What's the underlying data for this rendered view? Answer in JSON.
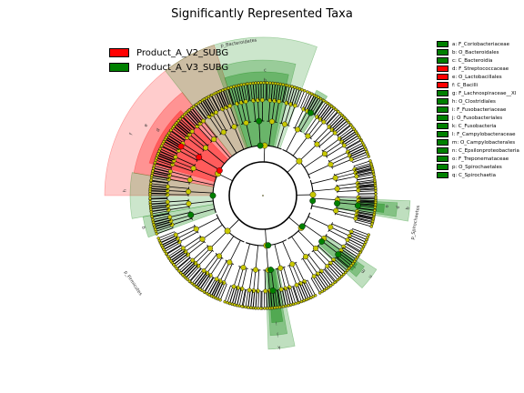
{
  "chart_data": {
    "type": "cladogram",
    "title": "Significantly Represented Taxa",
    "colors": {
      "Product_A_V2_SUBG": "#ff0000",
      "Product_A_V3_SUBG": "#008000",
      "node_default": "#c8c800"
    },
    "groups": [
      {
        "name": "Product_A_V2_SUBG",
        "color": "#ff0000"
      },
      {
        "name": "Product_A_V3_SUBG",
        "color": "#008000"
      }
    ],
    "key": [
      {
        "code": "a",
        "taxon": "a: F_Coriobacteriaceae",
        "group": "Product_A_V3_SUBG"
      },
      {
        "code": "b",
        "taxon": "b: O_Bacteroidales",
        "group": "Product_A_V3_SUBG"
      },
      {
        "code": "c",
        "taxon": "c: C_Bacteroidia",
        "group": "Product_A_V3_SUBG"
      },
      {
        "code": "d",
        "taxon": "d: F_Streptococcaceae",
        "group": "Product_A_V2_SUBG"
      },
      {
        "code": "e",
        "taxon": "e: O_Lactobacillales",
        "group": "Product_A_V2_SUBG"
      },
      {
        "code": "f",
        "taxon": "f: C_Bacilli",
        "group": "Product_A_V2_SUBG"
      },
      {
        "code": "g",
        "taxon": "g: F_Lachnospiraceae__Xl",
        "group": "Product_A_V3_SUBG"
      },
      {
        "code": "h",
        "taxon": "h: O_Clostridiales",
        "group": "Product_A_V3_SUBG"
      },
      {
        "code": "i",
        "taxon": "i: F_Fusobacteriaceae",
        "group": "Product_A_V3_SUBG"
      },
      {
        "code": "j",
        "taxon": "j: O_Fusobacteriales",
        "group": "Product_A_V3_SUBG"
      },
      {
        "code": "k",
        "taxon": "k: C_Fusobacteria",
        "group": "Product_A_V3_SUBG"
      },
      {
        "code": "l",
        "taxon": "l: F_Campylobacteraceae",
        "group": "Product_A_V3_SUBG"
      },
      {
        "code": "m",
        "taxon": "m: O_Campylobacterales",
        "group": "Product_A_V3_SUBG"
      },
      {
        "code": "n",
        "taxon": "n: C_Epsilonproteobacteria",
        "group": "Product_A_V3_SUBG"
      },
      {
        "code": "o",
        "taxon": "o: F_Treponemataceae",
        "group": "Product_A_V3_SUBG"
      },
      {
        "code": "p",
        "taxon": "p: O_Spirochaetales",
        "group": "Product_A_V3_SUBG"
      },
      {
        "code": "q",
        "taxon": "q: C_Spirochaetia",
        "group": "Product_A_V3_SUBG"
      }
    ],
    "outer_labels": [
      {
        "text": "p_Bacteroidetes",
        "group": "Product_A_V3_SUBG"
      },
      {
        "text": "p_Firmicutes",
        "group": "Product_A_V2_SUBG"
      },
      {
        "text": "p_Spirochaetes",
        "group": "Product_A_V3_SUBG"
      }
    ]
  }
}
